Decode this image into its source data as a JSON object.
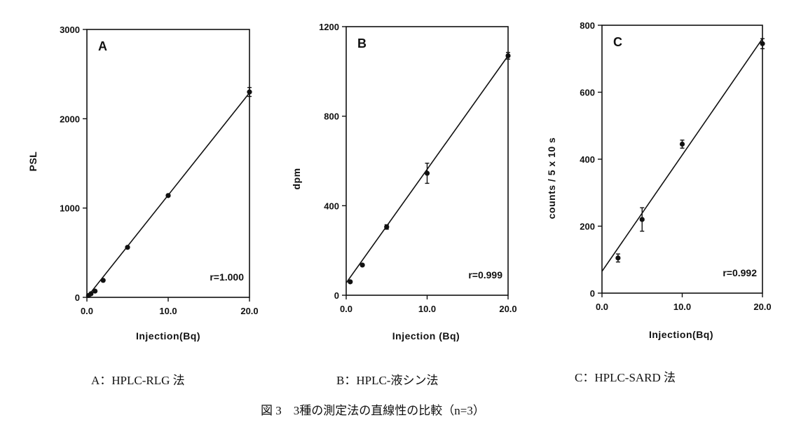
{
  "chart_data": [
    {
      "type": "scatter",
      "panel": "A",
      "ylabel": "PSL",
      "xlabel": "Injection(Bq)",
      "xlim": [
        0,
        20.0
      ],
      "ylim": [
        0,
        3000
      ],
      "xticks": [
        "0.0",
        "10.0",
        "20.0"
      ],
      "yticks": [
        "0",
        "1000",
        "2000",
        "3000"
      ],
      "annotation": "r=1.000",
      "points": [
        {
          "x": 0.2,
          "y": 20,
          "err": 0
        },
        {
          "x": 0.5,
          "y": 40,
          "err": 0
        },
        {
          "x": 1.0,
          "y": 70,
          "err": 0
        },
        {
          "x": 2.0,
          "y": 190,
          "err": 0
        },
        {
          "x": 5.0,
          "y": 560,
          "err": 0
        },
        {
          "x": 10.0,
          "y": 1140,
          "err": 0
        },
        {
          "x": 20.0,
          "y": 2300,
          "err": 50
        }
      ],
      "fit": {
        "x": [
          0.0,
          20.0
        ],
        "y": [
          0,
          2290
        ]
      },
      "caption": "A：HPLC-RLG 法"
    },
    {
      "type": "scatter",
      "panel": "B",
      "ylabel": "dpm",
      "xlabel": "Injection (Bq)",
      "xlim": [
        0,
        20.0
      ],
      "ylim": [
        0,
        1200
      ],
      "xticks": [
        "0.0",
        "10.0",
        "20.0"
      ],
      "yticks": [
        "0",
        "400",
        "800",
        "1200"
      ],
      "annotation": "r=0.999",
      "points": [
        {
          "x": 0.5,
          "y": 60,
          "err": 0
        },
        {
          "x": 2.0,
          "y": 135,
          "err": 0
        },
        {
          "x": 5.0,
          "y": 305,
          "err": 10
        },
        {
          "x": 10.0,
          "y": 545,
          "err": 45
        },
        {
          "x": 20.0,
          "y": 1070,
          "err": 15
        }
      ],
      "fit": {
        "x": [
          0.0,
          20.0
        ],
        "y": [
          55,
          1070
        ]
      },
      "caption": "B：HPLC-液シン法"
    },
    {
      "type": "scatter",
      "panel": "C",
      "ylabel": "counts / 5 x 10 s",
      "xlabel": "Injection(Bq)",
      "xlim": [
        0,
        20.0
      ],
      "ylim": [
        0,
        800
      ],
      "xticks": [
        "0.0",
        "10.0",
        "20.0"
      ],
      "yticks": [
        "0",
        "200",
        "400",
        "600",
        "800"
      ],
      "annotation": "r=0.992",
      "points": [
        {
          "x": 2.0,
          "y": 105,
          "err": 12
        },
        {
          "x": 5.0,
          "y": 220,
          "err": 35
        },
        {
          "x": 10.0,
          "y": 445,
          "err": 12
        },
        {
          "x": 20.0,
          "y": 745,
          "err": 15
        }
      ],
      "fit": {
        "x": [
          0.0,
          20.0
        ],
        "y": [
          65,
          760
        ]
      },
      "caption": "C：HPLC-SARD 法"
    }
  ],
  "figure": {
    "title": "図 3　3種の測定法の直線性の比較（n=3）"
  }
}
